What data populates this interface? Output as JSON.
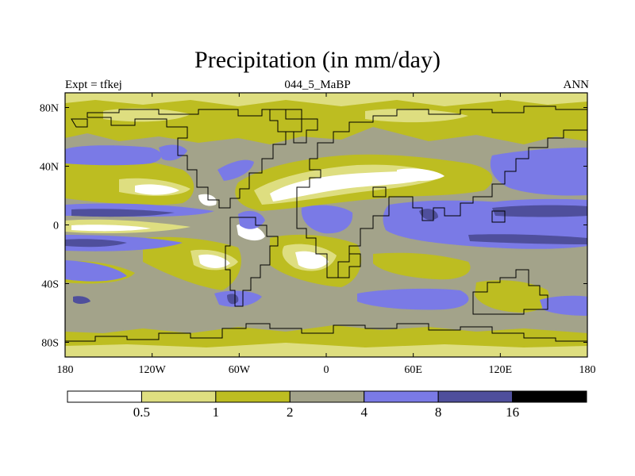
{
  "title": "Precipitation (in mm/day)",
  "subtitle_left": "Expt = tfkej",
  "subtitle_center": "044_5_MaBP",
  "subtitle_right": "ANN",
  "map": {
    "lon_range": [
      -180,
      180
    ],
    "lat_range": [
      -90,
      90
    ],
    "lon_ticks": [
      {
        "value": -180,
        "label": "180"
      },
      {
        "value": -120,
        "label": "120W"
      },
      {
        "value": -60,
        "label": "60W"
      },
      {
        "value": 0,
        "label": "0"
      },
      {
        "value": 60,
        "label": "60E"
      },
      {
        "value": 120,
        "label": "120E"
      },
      {
        "value": 180,
        "label": "180"
      }
    ],
    "lat_ticks": [
      {
        "value": 80,
        "label": "80N"
      },
      {
        "value": 40,
        "label": "40N"
      },
      {
        "value": 0,
        "label": "0"
      },
      {
        "value": -40,
        "label": "40S"
      },
      {
        "value": -80,
        "label": "80S"
      }
    ]
  },
  "colorbar": {
    "colors": [
      "#ffffff",
      "#dede80",
      "#bdbd21",
      "#a3a38a",
      "#7a7ae6",
      "#4f4f9c",
      "#000000"
    ],
    "labels": [
      "0.5",
      "1",
      "2",
      "4",
      "8",
      "16"
    ]
  },
  "colors": {
    "dry": "#ffffff",
    "pale": "#dede80",
    "olive": "#bdbd21",
    "gray": "#a3a38a",
    "blue": "#7a7ae6",
    "navy": "#4f4f9c"
  }
}
